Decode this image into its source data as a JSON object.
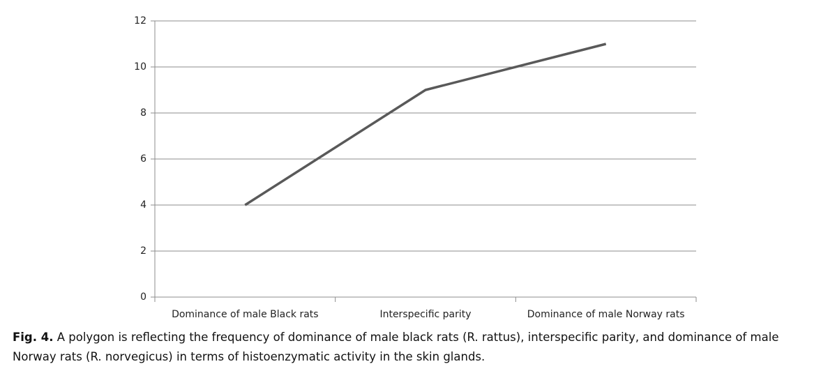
{
  "chart_data": {
    "type": "line",
    "categories": [
      "Dominance of male Black rats",
      "Interspecific parity",
      "Dominance of male Norway rats"
    ],
    "values": [
      4,
      9,
      11
    ],
    "color": "#595959",
    "ylim": [
      0,
      12
    ],
    "yticks": [
      0,
      2,
      4,
      6,
      8,
      10,
      12
    ],
    "grid": true
  },
  "caption": {
    "label": "Fig. 4.",
    "text": "A polygon is reflecting the frequency of dominance of male black rats (R. rattus), interspecific parity, and dominance of male Norway rats (R. norvegicus) in terms of histoenzymatic activity in the skin glands."
  }
}
